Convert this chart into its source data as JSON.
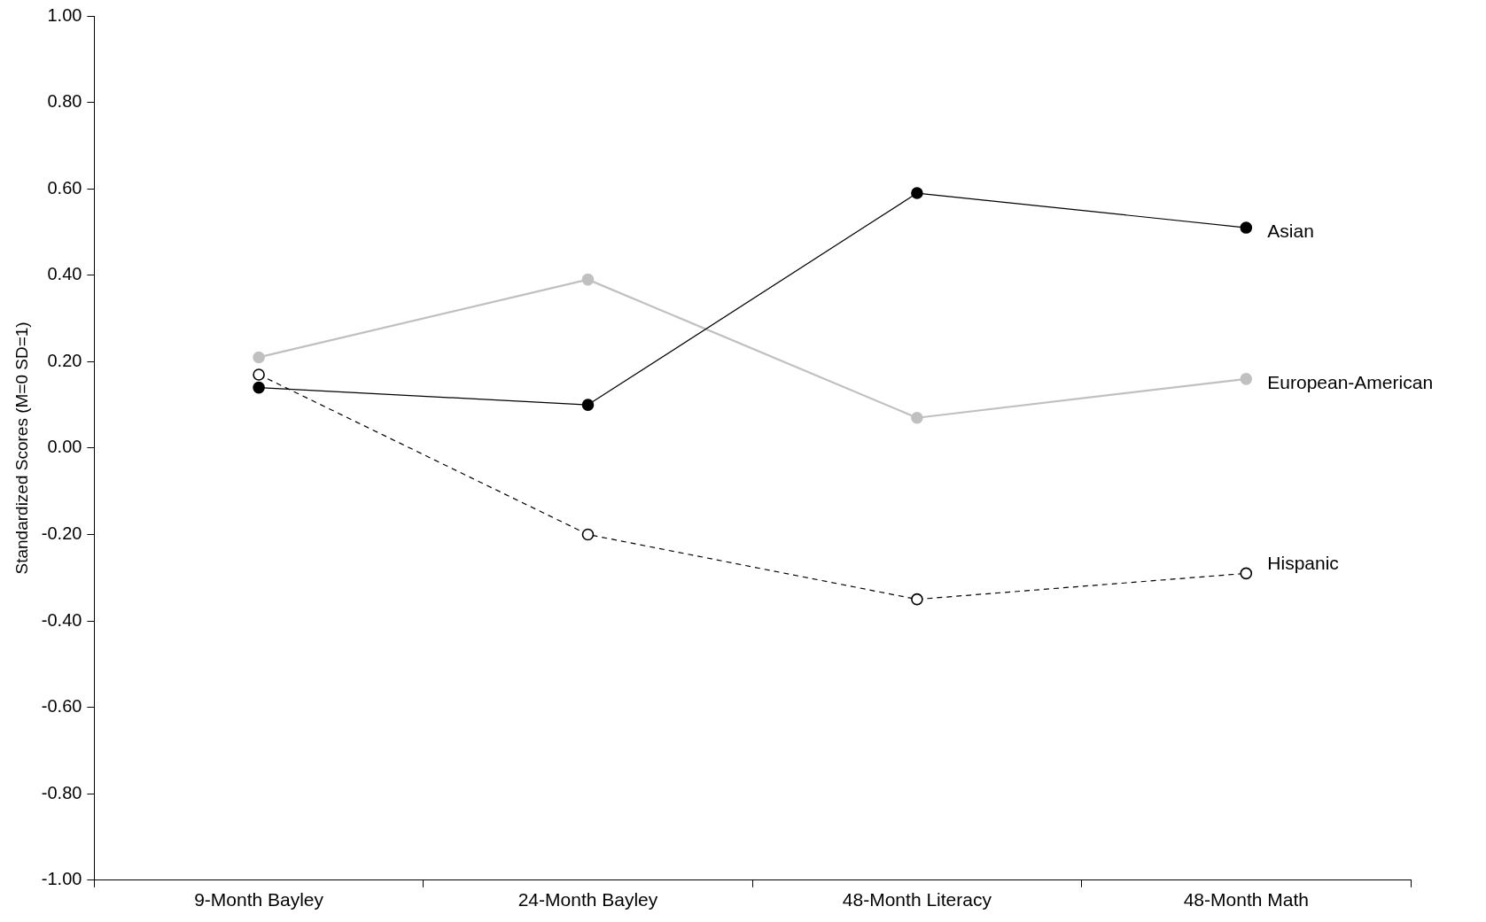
{
  "chart_data": {
    "type": "line",
    "ylabel": "Standardized Scores (M=0 SD=1)",
    "categories": [
      "9-Month Bayley",
      "24-Month Bayley",
      "48-Month Literacy",
      "48-Month Math"
    ],
    "ylim": [
      -1,
      1
    ],
    "yticks": [
      {
        "value": -1,
        "label": "-1.00"
      },
      {
        "value": -0.8,
        "label": "-0.80"
      },
      {
        "value": -0.6,
        "label": "-0.60"
      },
      {
        "value": -0.4,
        "label": "-0.40"
      },
      {
        "value": -0.2,
        "label": "-0.20"
      },
      {
        "value": 0,
        "label": "0.00"
      },
      {
        "value": 0.2,
        "label": "0.20"
      },
      {
        "value": 0.4,
        "label": "0.40"
      },
      {
        "value": 0.6,
        "label": "0.60"
      },
      {
        "value": 0.8,
        "label": "0.80"
      },
      {
        "value": 1,
        "label": "1.00"
      }
    ],
    "grid": false,
    "legend": false,
    "marker": "circle",
    "series": [
      {
        "name": "Asian",
        "color": "#000000",
        "line_style": "solid",
        "values": [
          0.14,
          0.1,
          0.59,
          0.51
        ]
      },
      {
        "name": "European-American",
        "color": "#c0c0c0",
        "line_style": "solid",
        "values": [
          0.21,
          0.39,
          0.07,
          0.16
        ]
      },
      {
        "name": "Hispanic",
        "color": "#000000",
        "line_style": "dashed",
        "values": [
          0.17,
          -0.2,
          -0.35,
          -0.29
        ]
      }
    ]
  }
}
